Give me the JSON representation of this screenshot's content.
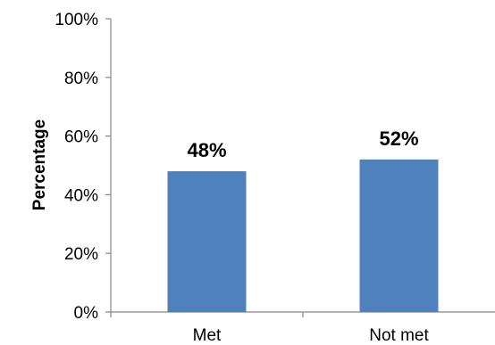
{
  "chart_data": {
    "type": "bar",
    "categories": [
      "Met",
      "Not met"
    ],
    "values": [
      48,
      52
    ],
    "data_labels": [
      "48%",
      "52%"
    ],
    "title": "",
    "xlabel": "",
    "ylabel": "Percentage",
    "ylim": [
      0,
      100
    ],
    "yticks": [
      0,
      20,
      40,
      60,
      80,
      100
    ],
    "ytick_labels": [
      "0%",
      "20%",
      "40%",
      "60%",
      "80%",
      "100%"
    ],
    "grid": false,
    "legend": "none",
    "bar_color": "#4f81bd",
    "axis_color": "#868686"
  }
}
